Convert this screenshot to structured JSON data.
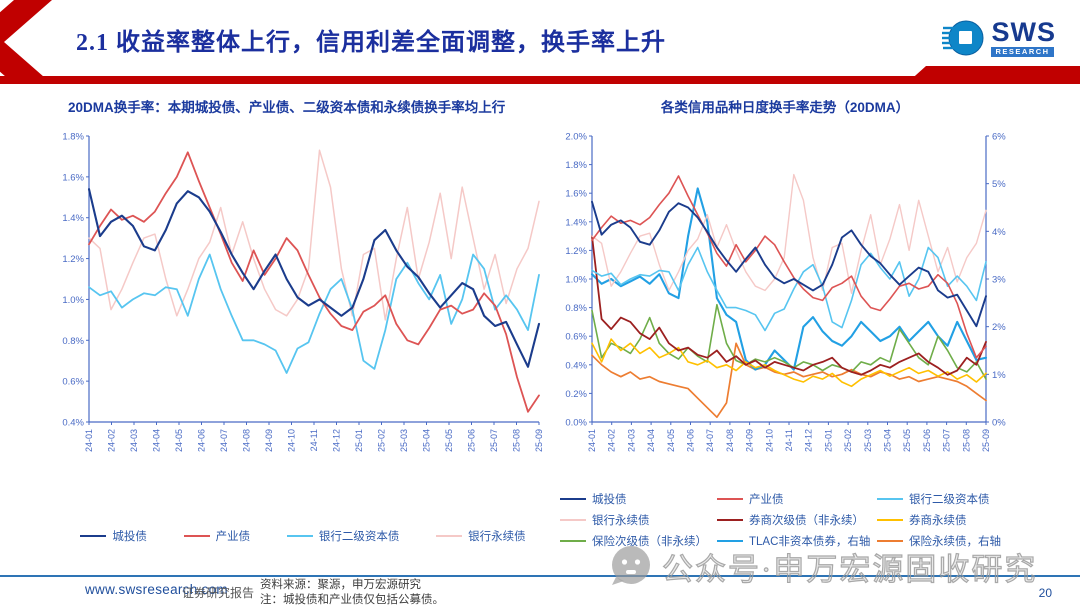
{
  "header": {
    "title": "2.1 收益率整体上行，信用利差全面调整，换手率上升",
    "logo": {
      "text": "SWS",
      "subtext": "RESEARCH"
    }
  },
  "chart_data": [
    {
      "type": "line",
      "title": "20DMA换手率：本期城投债、产业债、二级资本债和永续债换手率均上行",
      "categories": [
        "24-01",
        "24-02",
        "24-03",
        "24-04",
        "24-05",
        "24-06",
        "24-07",
        "24-08",
        "24-09",
        "24-10",
        "24-11",
        "24-12",
        "25-01",
        "25-02",
        "25-03",
        "25-04",
        "25-05",
        "25-06",
        "25-07",
        "25-08",
        "25-09"
      ],
      "left_axis": {
        "range": [
          0.4,
          1.8
        ],
        "ticks": [
          "1.8%",
          "1.6%",
          "1.4%",
          "1.2%",
          "1.0%",
          "0.8%",
          "0.6%",
          "0.4%"
        ],
        "unit": "%"
      },
      "grid": false,
      "legend_position": "bottom",
      "series": [
        {
          "name": "城投债",
          "color": "#1B3C8C",
          "width": 2.1,
          "axis": "left",
          "values": [
            1.54,
            1.31,
            1.38,
            1.41,
            1.36,
            1.26,
            1.24,
            1.34,
            1.47,
            1.53,
            1.5,
            1.43,
            1.33,
            1.22,
            1.13,
            1.05,
            1.14,
            1.22,
            1.1,
            1.01,
            0.97,
            1.0,
            0.96,
            0.92,
            0.96,
            1.1,
            1.29,
            1.34,
            1.24,
            1.16,
            1.11,
            1.03,
            0.96,
            1.02,
            1.08,
            1.05,
            0.92,
            0.87,
            0.89,
            0.78,
            0.67,
            0.88
          ]
        },
        {
          "name": "产业债",
          "color": "#DD5454",
          "width": 1.8,
          "axis": "left",
          "values": [
            1.27,
            1.36,
            1.44,
            1.39,
            1.41,
            1.38,
            1.43,
            1.52,
            1.6,
            1.72,
            1.58,
            1.45,
            1.32,
            1.18,
            1.09,
            1.24,
            1.12,
            1.2,
            1.3,
            1.24,
            1.12,
            1.01,
            0.93,
            0.87,
            0.85,
            0.94,
            0.97,
            1.02,
            0.88,
            0.8,
            0.78,
            0.86,
            0.95,
            0.97,
            0.93,
            0.95,
            1.03,
            0.97,
            0.83,
            0.62,
            0.45,
            0.53
          ]
        },
        {
          "name": "银行二级资本债",
          "color": "#57C5F0",
          "width": 1.8,
          "axis": "left",
          "values": [
            1.06,
            1.02,
            1.04,
            0.96,
            1.0,
            1.03,
            1.02,
            1.06,
            1.05,
            0.92,
            1.1,
            1.22,
            1.05,
            0.92,
            0.8,
            0.8,
            0.78,
            0.75,
            0.64,
            0.76,
            0.79,
            0.93,
            1.05,
            1.1,
            0.95,
            0.7,
            0.66,
            0.85,
            1.1,
            1.18,
            1.08,
            1.0,
            1.12,
            0.88,
            1.0,
            1.22,
            1.15,
            0.95,
            1.02,
            0.95,
            0.85,
            1.12
          ]
        },
        {
          "name": "银行永续债",
          "color": "#F5C9C7",
          "width": 1.5,
          "axis": "left",
          "values": [
            1.3,
            1.25,
            0.95,
            1.05,
            1.18,
            1.3,
            1.32,
            1.1,
            0.92,
            1.05,
            1.2,
            1.28,
            1.45,
            1.22,
            1.38,
            1.2,
            1.05,
            0.95,
            0.92,
            1.0,
            1.15,
            1.73,
            1.55,
            1.15,
            0.92,
            1.22,
            1.25,
            0.9,
            1.2,
            1.45,
            1.1,
            1.28,
            1.52,
            1.2,
            1.55,
            1.3,
            1.05,
            1.22,
            0.98,
            1.15,
            1.25,
            1.48
          ]
        }
      ]
    },
    {
      "type": "line",
      "title": "各类信用品种日度换手率走势（20DMA）",
      "categories": [
        "24-01",
        "24-02",
        "24-03",
        "24-04",
        "24-05",
        "24-06",
        "24-07",
        "24-08",
        "24-09",
        "24-10",
        "24-11",
        "24-12",
        "25-01",
        "25-02",
        "25-03",
        "25-04",
        "25-05",
        "25-06",
        "25-07",
        "25-08",
        "25-09"
      ],
      "left_axis": {
        "range": [
          0,
          2
        ],
        "ticks": [
          "2.0%",
          "1.8%",
          "1.6%",
          "1.4%",
          "1.2%",
          "1.0%",
          "0.8%",
          "0.6%",
          "0.4%",
          "0.2%",
          "0.0%"
        ],
        "unit": "%"
      },
      "right_axis": {
        "range": [
          0,
          6
        ],
        "ticks": [
          "6%",
          "5%",
          "4%",
          "3%",
          "2%",
          "1%",
          "0%"
        ],
        "unit": "%"
      },
      "grid": false,
      "legend_position": "bottom",
      "series": [
        {
          "name": "城投债",
          "color": "#1B3C8C",
          "width": 1.9,
          "axis": "left",
          "values": [
            1.54,
            1.31,
            1.38,
            1.41,
            1.36,
            1.26,
            1.24,
            1.34,
            1.47,
            1.53,
            1.5,
            1.43,
            1.33,
            1.22,
            1.13,
            1.05,
            1.14,
            1.22,
            1.1,
            1.01,
            0.97,
            1.0,
            0.96,
            0.92,
            0.96,
            1.1,
            1.29,
            1.34,
            1.24,
            1.16,
            1.11,
            1.03,
            0.96,
            1.02,
            1.08,
            1.05,
            0.92,
            0.87,
            0.89,
            0.78,
            0.67,
            0.88
          ]
        },
        {
          "name": "产业债",
          "color": "#DD5454",
          "width": 1.6,
          "axis": "left",
          "values": [
            1.27,
            1.36,
            1.44,
            1.39,
            1.41,
            1.38,
            1.43,
            1.52,
            1.6,
            1.72,
            1.58,
            1.45,
            1.32,
            1.18,
            1.09,
            1.24,
            1.12,
            1.2,
            1.3,
            1.24,
            1.12,
            1.01,
            0.93,
            0.87,
            0.85,
            0.94,
            0.97,
            1.02,
            0.88,
            0.8,
            0.78,
            0.86,
            0.95,
            0.97,
            0.93,
            0.95,
            1.03,
            0.97,
            0.83,
            0.62,
            0.45,
            0.53
          ]
        },
        {
          "name": "银行二级资本债",
          "color": "#57C5F0",
          "width": 1.6,
          "axis": "left",
          "values": [
            1.06,
            1.02,
            1.04,
            0.96,
            1.0,
            1.03,
            1.02,
            1.06,
            1.05,
            0.92,
            1.1,
            1.22,
            1.05,
            0.92,
            0.8,
            0.8,
            0.78,
            0.75,
            0.64,
            0.76,
            0.79,
            0.93,
            1.05,
            1.1,
            0.95,
            0.7,
            0.66,
            0.85,
            1.1,
            1.18,
            1.08,
            1.0,
            1.12,
            0.88,
            1.0,
            1.22,
            1.15,
            0.95,
            1.02,
            0.95,
            0.85,
            1.12
          ]
        },
        {
          "name": "银行永续债",
          "color": "#F5C9C7",
          "width": 1.4,
          "axis": "left",
          "values": [
            1.3,
            1.25,
            0.95,
            1.05,
            1.18,
            1.3,
            1.32,
            1.1,
            0.92,
            1.05,
            1.2,
            1.28,
            1.45,
            1.22,
            1.38,
            1.2,
            1.05,
            0.95,
            0.92,
            1.0,
            1.15,
            1.73,
            1.55,
            1.15,
            0.92,
            1.22,
            1.25,
            0.9,
            1.2,
            1.45,
            1.1,
            1.28,
            1.52,
            1.2,
            1.55,
            1.3,
            1.05,
            1.22,
            0.98,
            1.15,
            1.25,
            1.48
          ]
        },
        {
          "name": "券商次级债（非永续）",
          "color": "#9C2020",
          "width": 1.8,
          "axis": "left",
          "values": [
            1.3,
            0.72,
            0.65,
            0.73,
            0.7,
            0.62,
            0.58,
            0.66,
            0.55,
            0.5,
            0.52,
            0.47,
            0.45,
            0.5,
            0.42,
            0.46,
            0.4,
            0.43,
            0.38,
            0.42,
            0.4,
            0.38,
            0.36,
            0.4,
            0.42,
            0.45,
            0.38,
            0.35,
            0.33,
            0.36,
            0.4,
            0.38,
            0.42,
            0.45,
            0.48,
            0.42,
            0.38,
            0.33,
            0.36,
            0.45,
            0.4,
            0.56
          ]
        },
        {
          "name": "券商永续债",
          "color": "#FFC000",
          "width": 1.6,
          "axis": "left",
          "values": [
            0.55,
            0.42,
            0.58,
            0.5,
            0.55,
            0.48,
            0.52,
            0.45,
            0.48,
            0.52,
            0.42,
            0.4,
            0.43,
            0.38,
            0.4,
            0.36,
            0.42,
            0.38,
            0.4,
            0.36,
            0.33,
            0.3,
            0.28,
            0.32,
            0.3,
            0.34,
            0.28,
            0.25,
            0.3,
            0.33,
            0.36,
            0.32,
            0.35,
            0.38,
            0.34,
            0.36,
            0.32,
            0.35,
            0.3,
            0.33,
            0.28,
            0.34
          ]
        },
        {
          "name": "保险次级债（非永续）",
          "color": "#6FAD49",
          "width": 1.6,
          "axis": "left",
          "values": [
            0.78,
            0.45,
            0.55,
            0.52,
            0.48,
            0.58,
            0.73,
            0.55,
            0.48,
            0.44,
            0.52,
            0.46,
            0.42,
            0.82,
            0.55,
            0.43,
            0.4,
            0.44,
            0.42,
            0.45,
            0.42,
            0.38,
            0.42,
            0.4,
            0.36,
            0.4,
            0.38,
            0.35,
            0.42,
            0.4,
            0.45,
            0.42,
            0.65,
            0.55,
            0.45,
            0.4,
            0.6,
            0.5,
            0.38,
            0.35,
            0.42,
            0.3
          ]
        },
        {
          "name": "TLAC非资本债券，右轴",
          "color": "#22A0E4",
          "width": 2.1,
          "axis": "right",
          "values": [
            3.1,
            2.9,
            3.0,
            2.85,
            2.95,
            3.05,
            2.9,
            3.1,
            2.7,
            2.6,
            3.9,
            4.9,
            4.2,
            2.6,
            2.25,
            2.1,
            1.3,
            1.1,
            1.2,
            1.5,
            1.3,
            1.1,
            2.0,
            2.2,
            1.9,
            1.7,
            1.6,
            1.8,
            2.1,
            1.9,
            1.7,
            1.8,
            2.0,
            1.7,
            1.9,
            2.1,
            1.8,
            1.6,
            2.1,
            1.7,
            1.3,
            1.35
          ]
        },
        {
          "name": "保险永续债，右轴",
          "color": "#ED7D31",
          "width": 1.7,
          "axis": "right",
          "values": [
            1.4,
            1.2,
            1.05,
            0.95,
            1.05,
            0.9,
            0.95,
            0.85,
            0.8,
            0.75,
            0.7,
            0.5,
            0.3,
            0.1,
            0.4,
            1.65,
            1.2,
            1.1,
            1.15,
            1.05,
            1.0,
            1.05,
            0.95,
            1.0,
            1.05,
            0.95,
            1.0,
            1.1,
            1.0,
            0.95,
            1.05,
            1.0,
            0.9,
            0.95,
            0.85,
            0.9,
            0.95,
            0.9,
            0.85,
            0.75,
            0.6,
            0.45
          ]
        }
      ]
    }
  ],
  "footer": {
    "website": "www.swsresearch.com",
    "report_label": "证券研究报告",
    "source": "资料来源：聚源，申万宏源研究",
    "note": "注：城投债和产业债仅包括公募债。",
    "page_number": "20"
  },
  "watermark": {
    "text": "公众号·申万宏源固收研究"
  },
  "colors": {
    "accent_red": "#C00000",
    "title_blue": "#1B2F9E",
    "chart_title_blue": "#1B3A9E",
    "axis_blue": "#4A6BC5",
    "legend_text_blue": "#2E5AA8",
    "footer_line_blue": "#2E74B5"
  }
}
